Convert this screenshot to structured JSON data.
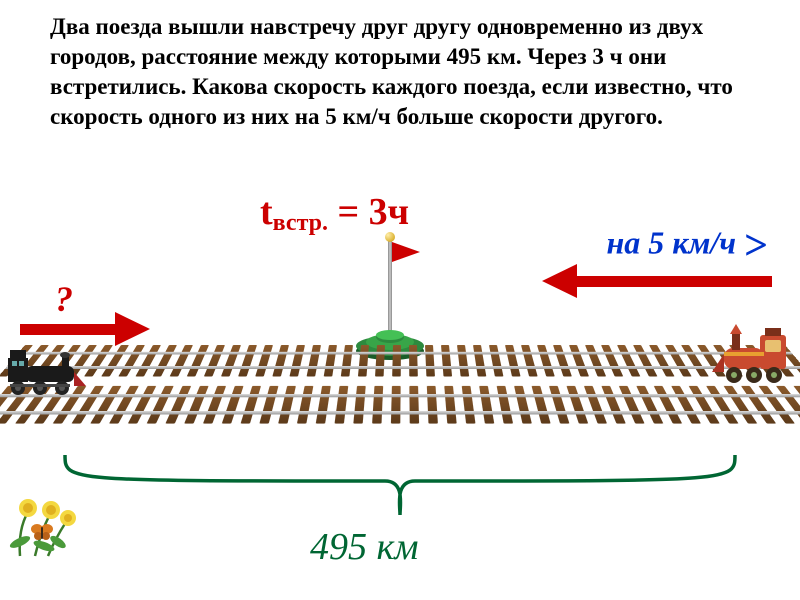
{
  "problem": {
    "text": "Два поезда вышли навстречу друг другу одновременно из двух городов, расстояние между которыми 495 км. Через 3 ч они встретились. Какова скорость каждого поезда, если известно, что скорость одного из них на 5 км/ч больше скорости другого."
  },
  "labels": {
    "time_var": "t",
    "time_sub": "встр.",
    "time_eq": "= 3ч",
    "speed_diff": "на 5 км/ч",
    "gt_symbol": ">",
    "question": "?",
    "distance": "495 км"
  },
  "colors": {
    "red": "#cc0000",
    "blue": "#0033cc",
    "green": "#006633",
    "track_tie": "#6b4226",
    "rail": "#bbbbbb",
    "pole_base": "#2d8a3e"
  }
}
